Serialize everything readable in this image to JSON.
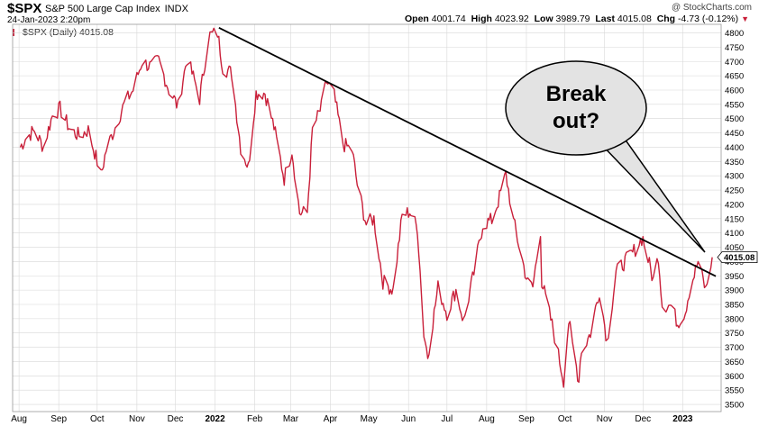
{
  "header": {
    "symbol": "$SPX",
    "name": "S&P 500 Large Cap Index",
    "exchange": "INDX",
    "date": "24-Jan-2023 2:20pm",
    "open_label": "Open",
    "open": "4001.74",
    "high_label": "High",
    "high": "4023.92",
    "low_label": "Low",
    "low": "3989.79",
    "last_label": "Last",
    "last": "4015.08",
    "chg_label": "Chg",
    "chg": "-4.73 (-0.12%)",
    "brand": "@ StockCharts.com"
  },
  "legend": "$SPX (Daily) 4015.08",
  "callout": {
    "line1": "Break",
    "line2": "out?"
  },
  "colors": {
    "series": "#c9203a",
    "grid": "#d8d8d8",
    "trendline": "#000000"
  },
  "chart_data": {
    "type": "line",
    "title": "$SPX S&P 500 Large Cap Index INDX",
    "series": [
      {
        "name": "$SPX (Daily)",
        "points": [
          [
            "2021-08-02",
            4400
          ],
          [
            "2021-08-06",
            4430
          ],
          [
            "2021-08-13",
            4460
          ],
          [
            "2021-08-20",
            4400
          ],
          [
            "2021-08-27",
            4510
          ],
          [
            "2021-09-02",
            4535
          ],
          [
            "2021-09-10",
            4460
          ],
          [
            "2021-09-17",
            4440
          ],
          [
            "2021-09-24",
            4460
          ],
          [
            "2021-10-01",
            4350
          ],
          [
            "2021-10-04",
            4300
          ],
          [
            "2021-10-08",
            4390
          ],
          [
            "2021-10-15",
            4470
          ],
          [
            "2021-10-22",
            4550
          ],
          [
            "2021-10-29",
            4600
          ],
          [
            "2021-11-05",
            4700
          ],
          [
            "2021-11-12",
            4680
          ],
          [
            "2021-11-18",
            4705
          ],
          [
            "2021-11-26",
            4600
          ],
          [
            "2021-11-30",
            4570
          ],
          [
            "2021-12-03",
            4540
          ],
          [
            "2021-12-10",
            4710
          ],
          [
            "2021-12-17",
            4620
          ],
          [
            "2021-12-20",
            4570
          ],
          [
            "2021-12-27",
            4790
          ],
          [
            "2022-01-03",
            4800
          ],
          [
            "2022-01-07",
            4680
          ],
          [
            "2022-01-14",
            4660
          ],
          [
            "2022-01-21",
            4400
          ],
          [
            "2022-01-27",
            4330
          ],
          [
            "2022-02-02",
            4590
          ],
          [
            "2022-02-09",
            4590
          ],
          [
            "2022-02-16",
            4470
          ],
          [
            "2022-02-24",
            4290
          ],
          [
            "2022-03-02",
            4390
          ],
          [
            "2022-03-08",
            4170
          ],
          [
            "2022-03-14",
            4170
          ],
          [
            "2022-03-18",
            4460
          ],
          [
            "2022-03-25",
            4540
          ],
          [
            "2022-03-29",
            4630
          ],
          [
            "2022-04-04",
            4580
          ],
          [
            "2022-04-11",
            4410
          ],
          [
            "2022-04-18",
            4390
          ],
          [
            "2022-04-22",
            4270
          ],
          [
            "2022-04-29",
            4130
          ],
          [
            "2022-05-05",
            4150
          ],
          [
            "2022-05-12",
            3930
          ],
          [
            "2022-05-20",
            3900
          ],
          [
            "2022-05-27",
            4160
          ],
          [
            "2022-06-02",
            4175
          ],
          [
            "2022-06-08",
            4115
          ],
          [
            "2022-06-13",
            3750
          ],
          [
            "2022-06-16",
            3670
          ],
          [
            "2022-06-24",
            3910
          ],
          [
            "2022-07-01",
            3820
          ],
          [
            "2022-07-08",
            3900
          ],
          [
            "2022-07-14",
            3790
          ],
          [
            "2022-07-22",
            3960
          ],
          [
            "2022-07-29",
            4130
          ],
          [
            "2022-08-05",
            4145
          ],
          [
            "2022-08-10",
            4210
          ],
          [
            "2022-08-16",
            4305
          ],
          [
            "2022-08-22",
            4140
          ],
          [
            "2022-08-26",
            4060
          ],
          [
            "2022-09-02",
            3925
          ],
          [
            "2022-09-06",
            3910
          ],
          [
            "2022-09-12",
            4110
          ],
          [
            "2022-09-13",
            3930
          ],
          [
            "2022-09-22",
            3760
          ],
          [
            "2022-09-30",
            3585
          ],
          [
            "2022-10-04",
            3790
          ],
          [
            "2022-10-12",
            3580
          ],
          [
            "2022-10-13",
            3670
          ],
          [
            "2022-10-21",
            3750
          ],
          [
            "2022-10-28",
            3900
          ],
          [
            "2022-11-03",
            3720
          ],
          [
            "2022-11-10",
            3960
          ],
          [
            "2022-11-15",
            3990
          ],
          [
            "2022-11-23",
            4030
          ],
          [
            "2022-11-30",
            4080
          ],
          [
            "2022-12-01",
            4080
          ],
          [
            "2022-12-09",
            3935
          ],
          [
            "2022-12-13",
            4020
          ],
          [
            "2022-12-16",
            3850
          ],
          [
            "2022-12-23",
            3845
          ],
          [
            "2022-12-28",
            3785
          ],
          [
            "2023-01-03",
            3825
          ],
          [
            "2023-01-06",
            3895
          ],
          [
            "2023-01-13",
            3999
          ],
          [
            "2023-01-19",
            3900
          ],
          [
            "2023-01-24",
            4015
          ]
        ]
      }
    ],
    "trendline": {
      "from": [
        "2022-01-04",
        4818
      ],
      "to": [
        "2023-01-24",
        3955
      ]
    },
    "y_ticks": [
      3500,
      3550,
      3600,
      3650,
      3700,
      3750,
      3800,
      3850,
      3900,
      3950,
      4000,
      4050,
      4100,
      4150,
      4200,
      4250,
      4300,
      4350,
      4400,
      4450,
      4500,
      4550,
      4600,
      4650,
      4700,
      4750,
      4800
    ],
    "ylim": [
      3475,
      4830
    ],
    "x_range": [
      "2021-07-27",
      "2023-01-31"
    ],
    "x_ticks": [
      {
        "date": "2021-08-01",
        "label": "Aug",
        "bold": false
      },
      {
        "date": "2021-09-01",
        "label": "Sep",
        "bold": false
      },
      {
        "date": "2021-10-01",
        "label": "Oct",
        "bold": false
      },
      {
        "date": "2021-11-01",
        "label": "Nov",
        "bold": false
      },
      {
        "date": "2021-12-01",
        "label": "Dec",
        "bold": false
      },
      {
        "date": "2022-01-01",
        "label": "2022",
        "bold": true
      },
      {
        "date": "2022-02-01",
        "label": "Feb",
        "bold": false
      },
      {
        "date": "2022-03-01",
        "label": "Mar",
        "bold": false
      },
      {
        "date": "2022-04-01",
        "label": "Apr",
        "bold": false
      },
      {
        "date": "2022-05-01",
        "label": "May",
        "bold": false
      },
      {
        "date": "2022-06-01",
        "label": "Jun",
        "bold": false
      },
      {
        "date": "2022-07-01",
        "label": "Jul",
        "bold": false
      },
      {
        "date": "2022-08-01",
        "label": "Aug",
        "bold": false
      },
      {
        "date": "2022-09-01",
        "label": "Sep",
        "bold": false
      },
      {
        "date": "2022-10-01",
        "label": "Oct",
        "bold": false
      },
      {
        "date": "2022-11-01",
        "label": "Nov",
        "bold": false
      },
      {
        "date": "2022-12-01",
        "label": "Dec",
        "bold": false
      },
      {
        "date": "2023-01-01",
        "label": "2023",
        "bold": true
      }
    ],
    "last_value_tag": "4015.08",
    "grid": true,
    "legend": "top-left"
  }
}
